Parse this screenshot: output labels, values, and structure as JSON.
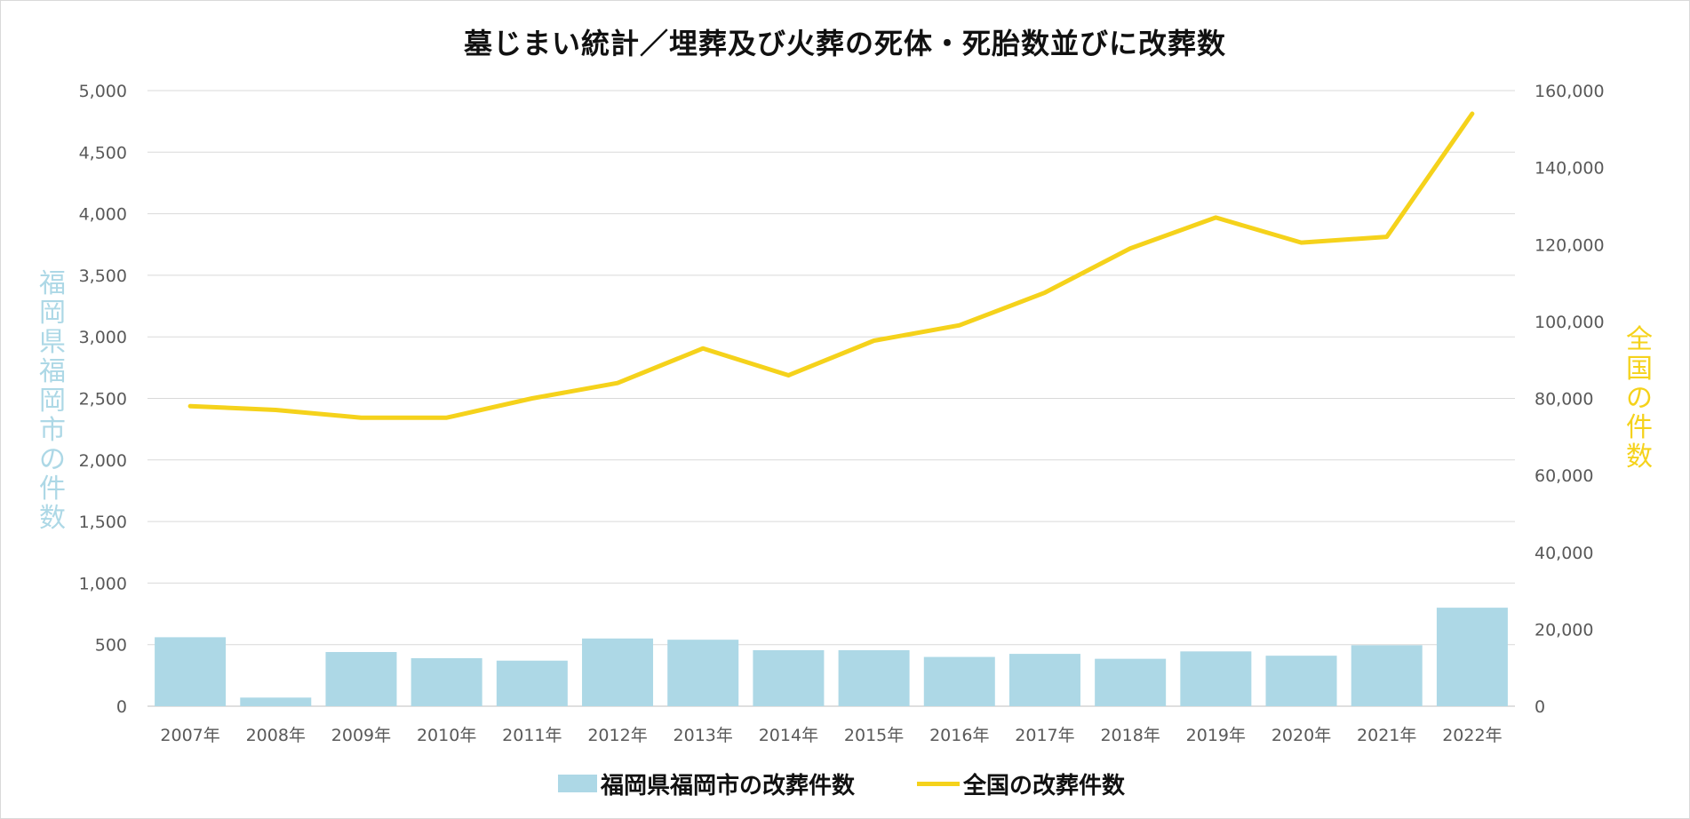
{
  "chart_data": {
    "type": "bar+line",
    "title": "墓じまい統計／埋葬及び火葬の死体・死胎数並びに改葬数",
    "categories": [
      "2007年",
      "2008年",
      "2009年",
      "2010年",
      "2011年",
      "2012年",
      "2013年",
      "2014年",
      "2015年",
      "2016年",
      "2017年",
      "2018年",
      "2019年",
      "2020年",
      "2021年",
      "2022年"
    ],
    "series": [
      {
        "name": "福岡県福岡市の改葬件数",
        "type": "bar",
        "axis": "left",
        "color": "#add8e6",
        "values": [
          560,
          70,
          440,
          390,
          370,
          550,
          540,
          455,
          455,
          400,
          425,
          385,
          445,
          410,
          495,
          800
        ]
      },
      {
        "name": "全国の改葬件数",
        "type": "line",
        "axis": "right",
        "color": "#f5d21b",
        "values": [
          78000,
          77000,
          75000,
          75000,
          80000,
          84000,
          93000,
          86000,
          95000,
          99000,
          107500,
          119000,
          127000,
          120500,
          122000,
          154000
        ]
      }
    ],
    "ylabel_left": "福岡県福岡市の件数",
    "ylabel_right": "全国の件数",
    "ylim_left": [
      0,
      5000
    ],
    "ylim_right": [
      0,
      160000
    ],
    "yticks_left": [
      "0",
      "500",
      "1,000",
      "1,500",
      "2,000",
      "2,500",
      "3,000",
      "3,500",
      "4,000",
      "4,500",
      "5,000"
    ],
    "yticks_right": [
      "0",
      "20,000",
      "40,000",
      "60,000",
      "80,000",
      "100,000",
      "120,000",
      "140,000",
      "160,000"
    ],
    "grid": true,
    "legend_position": "bottom"
  }
}
